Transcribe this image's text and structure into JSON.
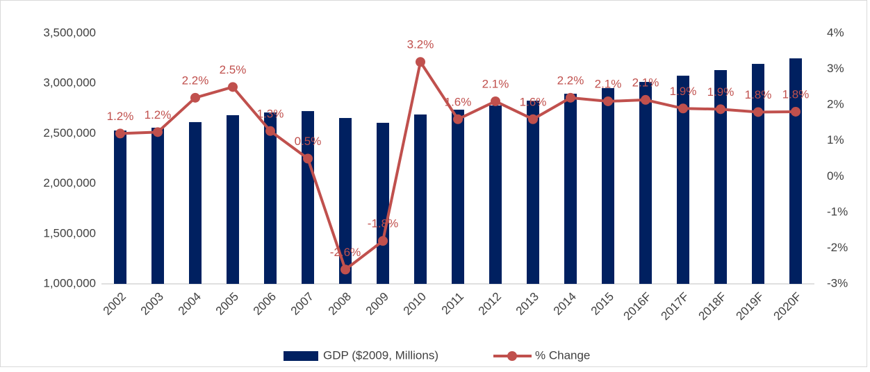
{
  "chart_data": {
    "type": "bar_line",
    "categories": [
      "2002",
      "2003",
      "2004",
      "2005",
      "2006",
      "2007",
      "2008",
      "2009",
      "2010",
      "2011",
      "2012",
      "2013",
      "2014",
      "2015",
      "2016F",
      "2017F",
      "2018F",
      "2019F",
      "2020F"
    ],
    "series": [
      {
        "name": "GDP ($2009, Millions)",
        "color": "#002060",
        "type": "bar",
        "values": [
          2530000,
          2558000,
          2614000,
          2683000,
          2710000,
          2724000,
          2655000,
          2607000,
          2690000,
          2738000,
          2780000,
          2828000,
          2897000,
          2953000,
          3015000,
          3077000,
          3133000,
          3195000,
          3250000
        ]
      },
      {
        "name": "% Change",
        "color": "#c0504d",
        "type": "line",
        "axis": "y2",
        "values": [
          1.2,
          1.24,
          2.2,
          2.5,
          1.27,
          0.5,
          -2.6,
          -1.8,
          3.2,
          1.6,
          2.1,
          1.6,
          2.2,
          2.1,
          2.14,
          1.9,
          1.88,
          1.8,
          1.81
        ],
        "value_labels": [
          "1.2%",
          "1.2%",
          "2.2%",
          "2.5%",
          "1.3%",
          "0.5%",
          "-2.6%",
          "-1.8%",
          "3.2%",
          "1.6%",
          "2.1%",
          "1.6%",
          "2.2%",
          "2.1%",
          "2.1%",
          "1.9%",
          "1.9%",
          "1.8%",
          "1.8%"
        ]
      }
    ],
    "ylim": [
      1000000,
      3500000
    ],
    "yticks": [
      {
        "value": 1000000,
        "label": "1,000,000"
      },
      {
        "value": 1500000,
        "label": "1,500,000"
      },
      {
        "value": 2000000,
        "label": "2,000,000"
      },
      {
        "value": 2500000,
        "label": "2,500,000"
      },
      {
        "value": 3000000,
        "label": "3,000,000"
      },
      {
        "value": 3500000,
        "label": "3,500,000"
      }
    ],
    "y2lim": [
      -3,
      4
    ],
    "y2ticks": [
      {
        "value": -3,
        "label": "-3%"
      },
      {
        "value": -2,
        "label": "-2%"
      },
      {
        "value": -1,
        "label": "-1%"
      },
      {
        "value": 0,
        "label": "0%"
      },
      {
        "value": 1,
        "label": "1%"
      },
      {
        "value": 2,
        "label": "2%"
      },
      {
        "value": 3,
        "label": "3%"
      },
      {
        "value": 4,
        "label": "4%"
      }
    ],
    "grid": false,
    "legend": "bottom"
  }
}
